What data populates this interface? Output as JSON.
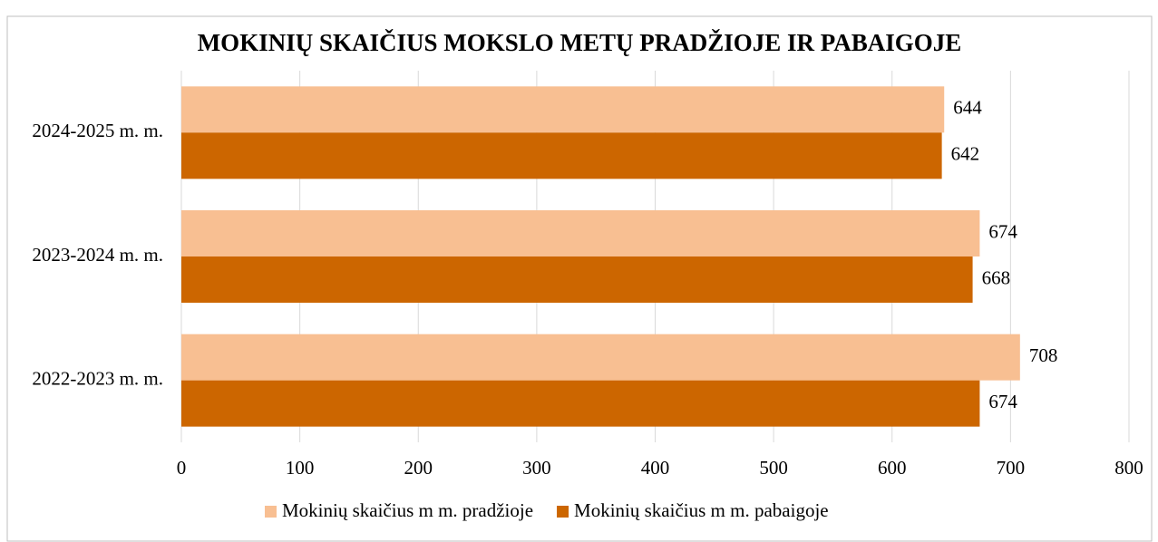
{
  "chart_data": {
    "type": "hbar",
    "title": "MOKINIŲ SKAIČIUS MOKSLO METŲ PRADŽIOJE IR PABAIGOJE",
    "categories": [
      "2024-2025 m. m.",
      "2023-2024 m. m.",
      "2022-2023 m. m."
    ],
    "series": [
      {
        "name": "Mokinių skaičius m m. pradžioje",
        "color": "#f8bf92",
        "values": [
          644,
          674,
          708
        ]
      },
      {
        "name": "Mokinių skaičius m m. pabaigoje",
        "color": "#cc6600",
        "values": [
          642,
          668,
          674
        ]
      }
    ],
    "xlim": [
      0,
      800
    ],
    "xticks": [
      0,
      100,
      200,
      300,
      400,
      500,
      600,
      700,
      800
    ],
    "grid": true,
    "legend": "bottom"
  }
}
